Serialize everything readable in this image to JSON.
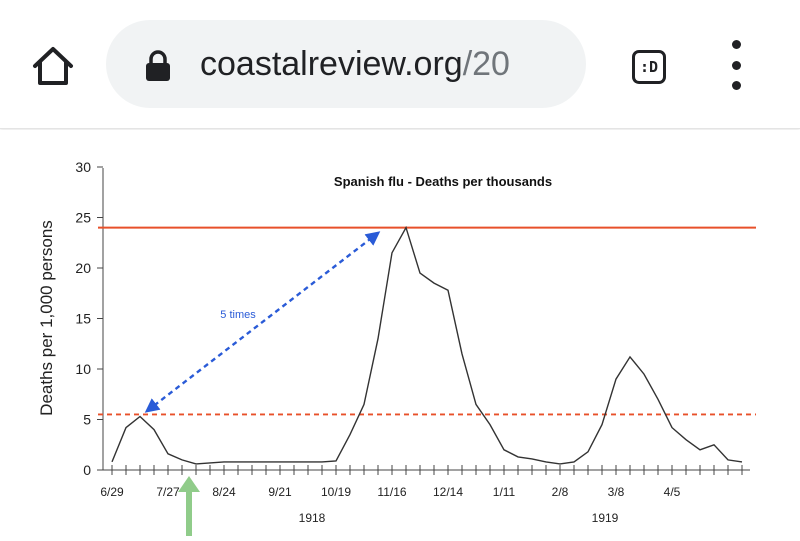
{
  "browser": {
    "url_host": "coastalreview.org",
    "url_path": "/20",
    "tab_switcher_label": ":D",
    "icons": {
      "home": "home-icon",
      "lock": "lock-icon",
      "tabs": "tab-switcher-icon",
      "menu": "overflow-menu-icon"
    }
  },
  "chart_data": {
    "type": "line",
    "title": "Spanish flu - Deaths per thousands",
    "ylabel": "Deaths per 1,000 persons",
    "xlabel": "",
    "ylim": [
      0,
      30
    ],
    "yticks": [
      "0",
      "5",
      "10",
      "15",
      "20",
      "25",
      "30"
    ],
    "xticks": [
      "6/29",
      "7/27",
      "8/24",
      "9/21",
      "10/19",
      "11/16",
      "12/14",
      "1/11",
      "2/8",
      "3/8",
      "4/5"
    ],
    "year_labels": [
      "1918",
      "1919"
    ],
    "annotation": "5 times",
    "reference_lines": [
      {
        "value": 24,
        "style": "solid",
        "color": "#e8502a"
      },
      {
        "value": 5.5,
        "style": "dashed",
        "color": "#e8502a"
      }
    ],
    "series": [
      {
        "color": "#333333",
        "points": [
          [
            0,
            0.8
          ],
          [
            1,
            4.2
          ],
          [
            2,
            5.3
          ],
          [
            3,
            4.0
          ],
          [
            4,
            1.6
          ],
          [
            5,
            1.0
          ],
          [
            6,
            0.6
          ],
          [
            7,
            0.7
          ],
          [
            8,
            0.8
          ],
          [
            9,
            0.8
          ],
          [
            10,
            0.8
          ],
          [
            11,
            0.8
          ],
          [
            12,
            0.8
          ],
          [
            13,
            0.8
          ],
          [
            14,
            0.8
          ],
          [
            15,
            0.8
          ],
          [
            16,
            0.9
          ],
          [
            17,
            3.5
          ],
          [
            18,
            6.5
          ],
          [
            19,
            13.0
          ],
          [
            20,
            21.5
          ],
          [
            21,
            24.0
          ],
          [
            22,
            19.5
          ],
          [
            23,
            18.5
          ],
          [
            24,
            17.8
          ],
          [
            25,
            11.5
          ],
          [
            26,
            6.5
          ],
          [
            27,
            4.5
          ],
          [
            28,
            2.0
          ],
          [
            29,
            1.3
          ],
          [
            30,
            1.1
          ],
          [
            31,
            0.8
          ],
          [
            32,
            0.6
          ],
          [
            33,
            0.8
          ],
          [
            34,
            1.8
          ],
          [
            35,
            4.5
          ],
          [
            36,
            9.0
          ],
          [
            37,
            11.2
          ],
          [
            38,
            9.5
          ],
          [
            39,
            7.0
          ],
          [
            40,
            4.2
          ],
          [
            41,
            3.0
          ],
          [
            42,
            2.0
          ],
          [
            43,
            2.5
          ],
          [
            44,
            1.0
          ],
          [
            45,
            0.8
          ]
        ]
      }
    ]
  }
}
